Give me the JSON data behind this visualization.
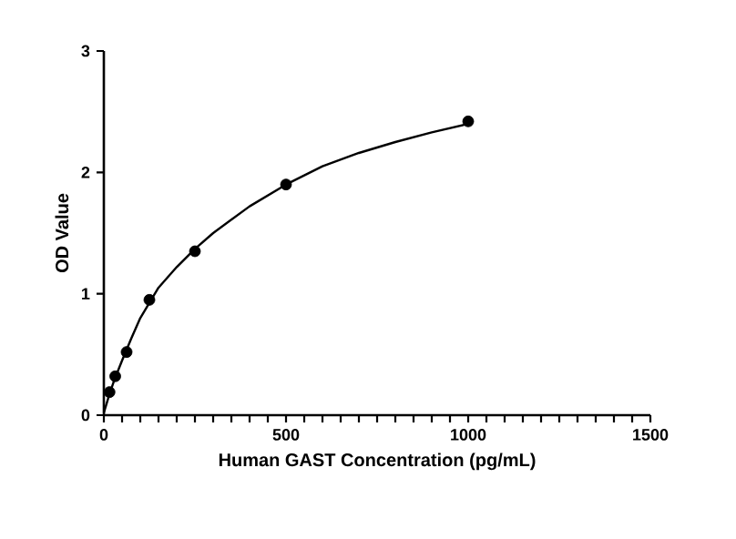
{
  "chart_data": {
    "type": "scatter",
    "xlabel": "Human GAST Concentration (pg/mL)",
    "ylabel": "OD Value",
    "xlim": [
      0,
      1500
    ],
    "ylim": [
      0,
      3
    ],
    "xticks": [
      0,
      {
        "value": 50,
        "label": null
      },
      {
        "value": 100,
        "label": null
      },
      {
        "value": 150,
        "label": null
      },
      {
        "value": 200,
        "label": null
      },
      {
        "value": 250,
        "label": null
      },
      {
        "value": 300,
        "label": null
      },
      {
        "value": 350,
        "label": null
      },
      {
        "value": 400,
        "label": null
      },
      {
        "value": 450,
        "label": null
      },
      500,
      {
        "value": 550,
        "label": null
      },
      {
        "value": 600,
        "label": null
      },
      {
        "value": 650,
        "label": null
      },
      {
        "value": 700,
        "label": null
      },
      {
        "value": 750,
        "label": null
      },
      {
        "value": 800,
        "label": null
      },
      {
        "value": 850,
        "label": null
      },
      {
        "value": 900,
        "label": null
      },
      {
        "value": 950,
        "label": null
      },
      1000,
      {
        "value": 1050,
        "label": null
      },
      {
        "value": 1100,
        "label": null
      },
      {
        "value": 1150,
        "label": null
      },
      {
        "value": 1200,
        "label": null
      },
      {
        "value": 1250,
        "label": null
      },
      {
        "value": 1300,
        "label": null
      },
      {
        "value": 1350,
        "label": null
      },
      {
        "value": 1400,
        "label": null
      },
      {
        "value": 1450,
        "label": null
      },
      1500
    ],
    "yticks": [
      0,
      1,
      2,
      3
    ],
    "grid": false,
    "series": [
      {
        "marker": "circle",
        "color": "#000000",
        "x": [
          15.6,
          31.25,
          62.5,
          125,
          250,
          500,
          1000
        ],
        "values": [
          0.19,
          0.32,
          0.52,
          0.95,
          1.35,
          1.9,
          2.42
        ]
      },
      {
        "type": "line",
        "marker": "none",
        "line_style": "solid",
        "color": "#000000",
        "x": [
          0,
          15,
          30,
          50,
          75,
          100,
          150,
          200,
          250,
          300,
          400,
          500,
          600,
          700,
          800,
          900,
          1000
        ],
        "values": [
          0.02,
          0.17,
          0.3,
          0.45,
          0.63,
          0.8,
          1.05,
          1.22,
          1.37,
          1.5,
          1.72,
          1.9,
          2.05,
          2.16,
          2.25,
          2.33,
          2.4
        ]
      }
    ]
  }
}
